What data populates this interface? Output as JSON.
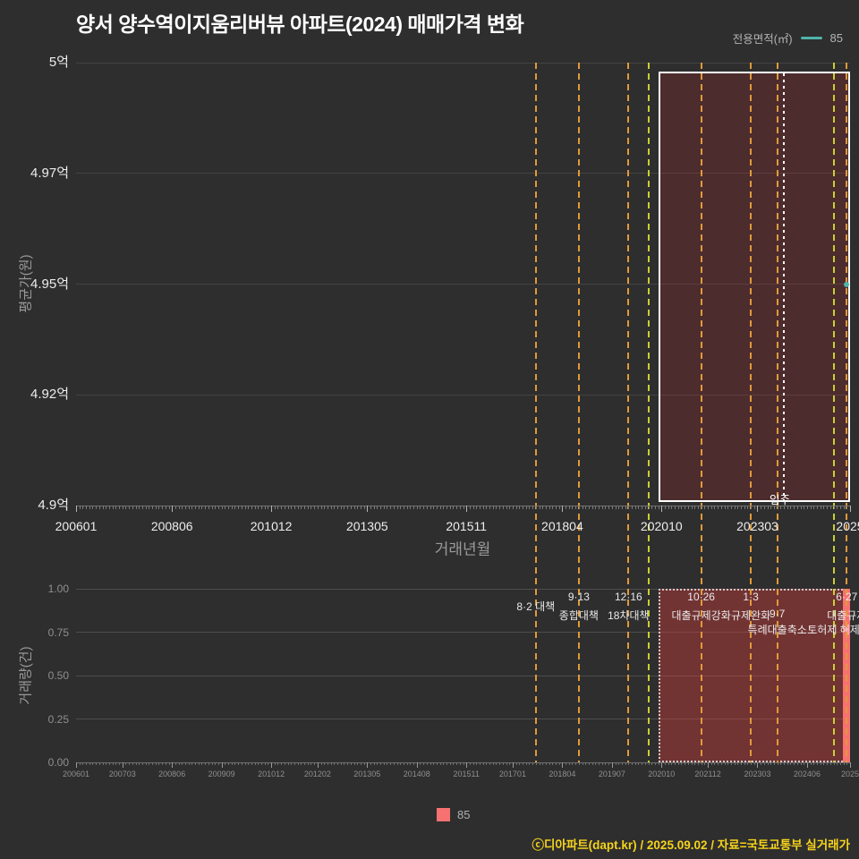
{
  "page": {
    "title": "양서 양수역이지움리버뷰 아파트(2024) 매매가격 변화",
    "footer": "ⓒ디아파트(dapt.kr) / 2025.09.02 / 자료=국토교통부 실거래가"
  },
  "top_legend": {
    "label": "전용면적(㎡)",
    "value": "85"
  },
  "bottom_legend": {
    "value": "85"
  },
  "colors": {
    "background": "#2e2e2e",
    "series": "#4fb3a9",
    "bar": "#f87171",
    "event_primary": "#e09a3a",
    "event_secondary": "#c9cf35",
    "move_in_line": "#ffffff",
    "highlight_border": "#ffffff",
    "price_highlight_fill": "rgba(190,40,45,0.22)",
    "volume_highlight_fill": "rgba(225,60,60,0.38)",
    "footer_text": "#f5d31b",
    "grid_price": "#434343",
    "grid_volume": "#4d4d4d",
    "axis_text": "#ededed",
    "muted_text": "#9a9a9a",
    "small_text": "#8f8f8f",
    "annotation_text": "#eaeaea"
  },
  "x_domain": {
    "start": "2006-01",
    "end": "2025-07"
  },
  "move_in": {
    "date": "2023-11",
    "label": "입주"
  },
  "chart_data": [
    {
      "type": "line",
      "name": "매매가격 평균가",
      "ylabel": "평균가(원)",
      "xlabel": "거래년월",
      "ylim": [
        4.9,
        5.0
      ],
      "yticks": [
        {
          "value": 5.0,
          "label": "5억"
        },
        {
          "value": 4.975,
          "label": "4.97억"
        },
        {
          "value": 4.95,
          "label": "4.95억"
        },
        {
          "value": 4.925,
          "label": "4.92억"
        },
        {
          "value": 4.9,
          "label": "4.9억"
        }
      ],
      "xticks": [
        {
          "date": "2006-01",
          "label": "200601"
        },
        {
          "date": "2008-06",
          "label": "200806"
        },
        {
          "date": "2010-12",
          "label": "201012"
        },
        {
          "date": "2013-05",
          "label": "201305"
        },
        {
          "date": "2015-11",
          "label": "201511"
        },
        {
          "date": "2018-04",
          "label": "201804"
        },
        {
          "date": "2020-10",
          "label": "202010"
        },
        {
          "date": "2023-03",
          "label": "202303"
        },
        {
          "date": "2025-07",
          "label": "2025"
        }
      ],
      "series": [
        {
          "name": "85",
          "unit": "억",
          "points": [
            {
              "date": "2025-06",
              "value": 4.95
            }
          ]
        }
      ],
      "highlight": {
        "from": "2020-09",
        "to": "2025-07"
      }
    },
    {
      "type": "bar",
      "name": "거래량",
      "ylabel": "거래량(건)",
      "ylim": [
        0,
        1
      ],
      "yticks": [
        {
          "value": 1.0,
          "label": "1.00"
        },
        {
          "value": 0.75,
          "label": "0.75"
        },
        {
          "value": 0.5,
          "label": "0.50"
        },
        {
          "value": 0.25,
          "label": "0.25"
        },
        {
          "value": 0.0,
          "label": "0.00"
        }
      ],
      "xticks": [
        {
          "date": "2006-01",
          "label": "200601"
        },
        {
          "date": "2007-03",
          "label": "200703"
        },
        {
          "date": "2008-06",
          "label": "200806"
        },
        {
          "date": "2009-09",
          "label": "200909"
        },
        {
          "date": "2010-12",
          "label": "201012"
        },
        {
          "date": "2012-02",
          "label": "201202"
        },
        {
          "date": "2013-05",
          "label": "201305"
        },
        {
          "date": "2014-08",
          "label": "201408"
        },
        {
          "date": "2015-11",
          "label": "201511"
        },
        {
          "date": "2017-01",
          "label": "201701"
        },
        {
          "date": "2018-04",
          "label": "201804"
        },
        {
          "date": "2019-07",
          "label": "201907"
        },
        {
          "date": "2020-10",
          "label": "202010"
        },
        {
          "date": "2021-12",
          "label": "202112"
        },
        {
          "date": "2023-03",
          "label": "202303"
        },
        {
          "date": "2024-06",
          "label": "202406"
        },
        {
          "date": "2025-07",
          "label": "2025"
        }
      ],
      "bars": [
        {
          "date": "2025-06",
          "value": 1
        }
      ],
      "highlight": {
        "from": "2020-09",
        "to": "2025-07"
      }
    }
  ],
  "policy_events": [
    {
      "date": "2017-08",
      "type": "primary",
      "labels": [
        {
          "text": "8·2 대책",
          "row": 1.5
        }
      ]
    },
    {
      "date": "2018-09",
      "type": "primary",
      "labels": [
        {
          "text": "9·13",
          "row": 1
        },
        {
          "text": "종합대책",
          "row": 2
        }
      ]
    },
    {
      "date": "2019-12",
      "type": "primary",
      "labels": [
        {
          "text": "12·16",
          "row": 1
        },
        {
          "text": "18차대책",
          "row": 2
        }
      ]
    },
    {
      "date": "2020-06",
      "type": "secondary",
      "labels": []
    },
    {
      "date": "2021-10",
      "type": "primary",
      "labels": [
        {
          "text": "10·26",
          "row": 1
        },
        {
          "text": "대출규제강화",
          "row": 2
        }
      ]
    },
    {
      "date": "2023-01",
      "type": "primary",
      "labels": [
        {
          "text": "1·3",
          "row": 1
        },
        {
          "text": "규제완화",
          "row": 2
        }
      ]
    },
    {
      "date": "2023-09",
      "type": "primary",
      "labels": [
        {
          "text": "9·7",
          "row": 2
        },
        {
          "text": "특례대출축소",
          "row": 3
        }
      ]
    },
    {
      "date": "2025-02",
      "type": "secondary",
      "labels": [
        {
          "text": "토허제 해제",
          "row": 3
        }
      ]
    },
    {
      "date": "2025-06",
      "type": "primary",
      "labels": [
        {
          "text": "6·27",
          "row": 1
        },
        {
          "text": "대출규제",
          "row": 2
        }
      ]
    }
  ]
}
